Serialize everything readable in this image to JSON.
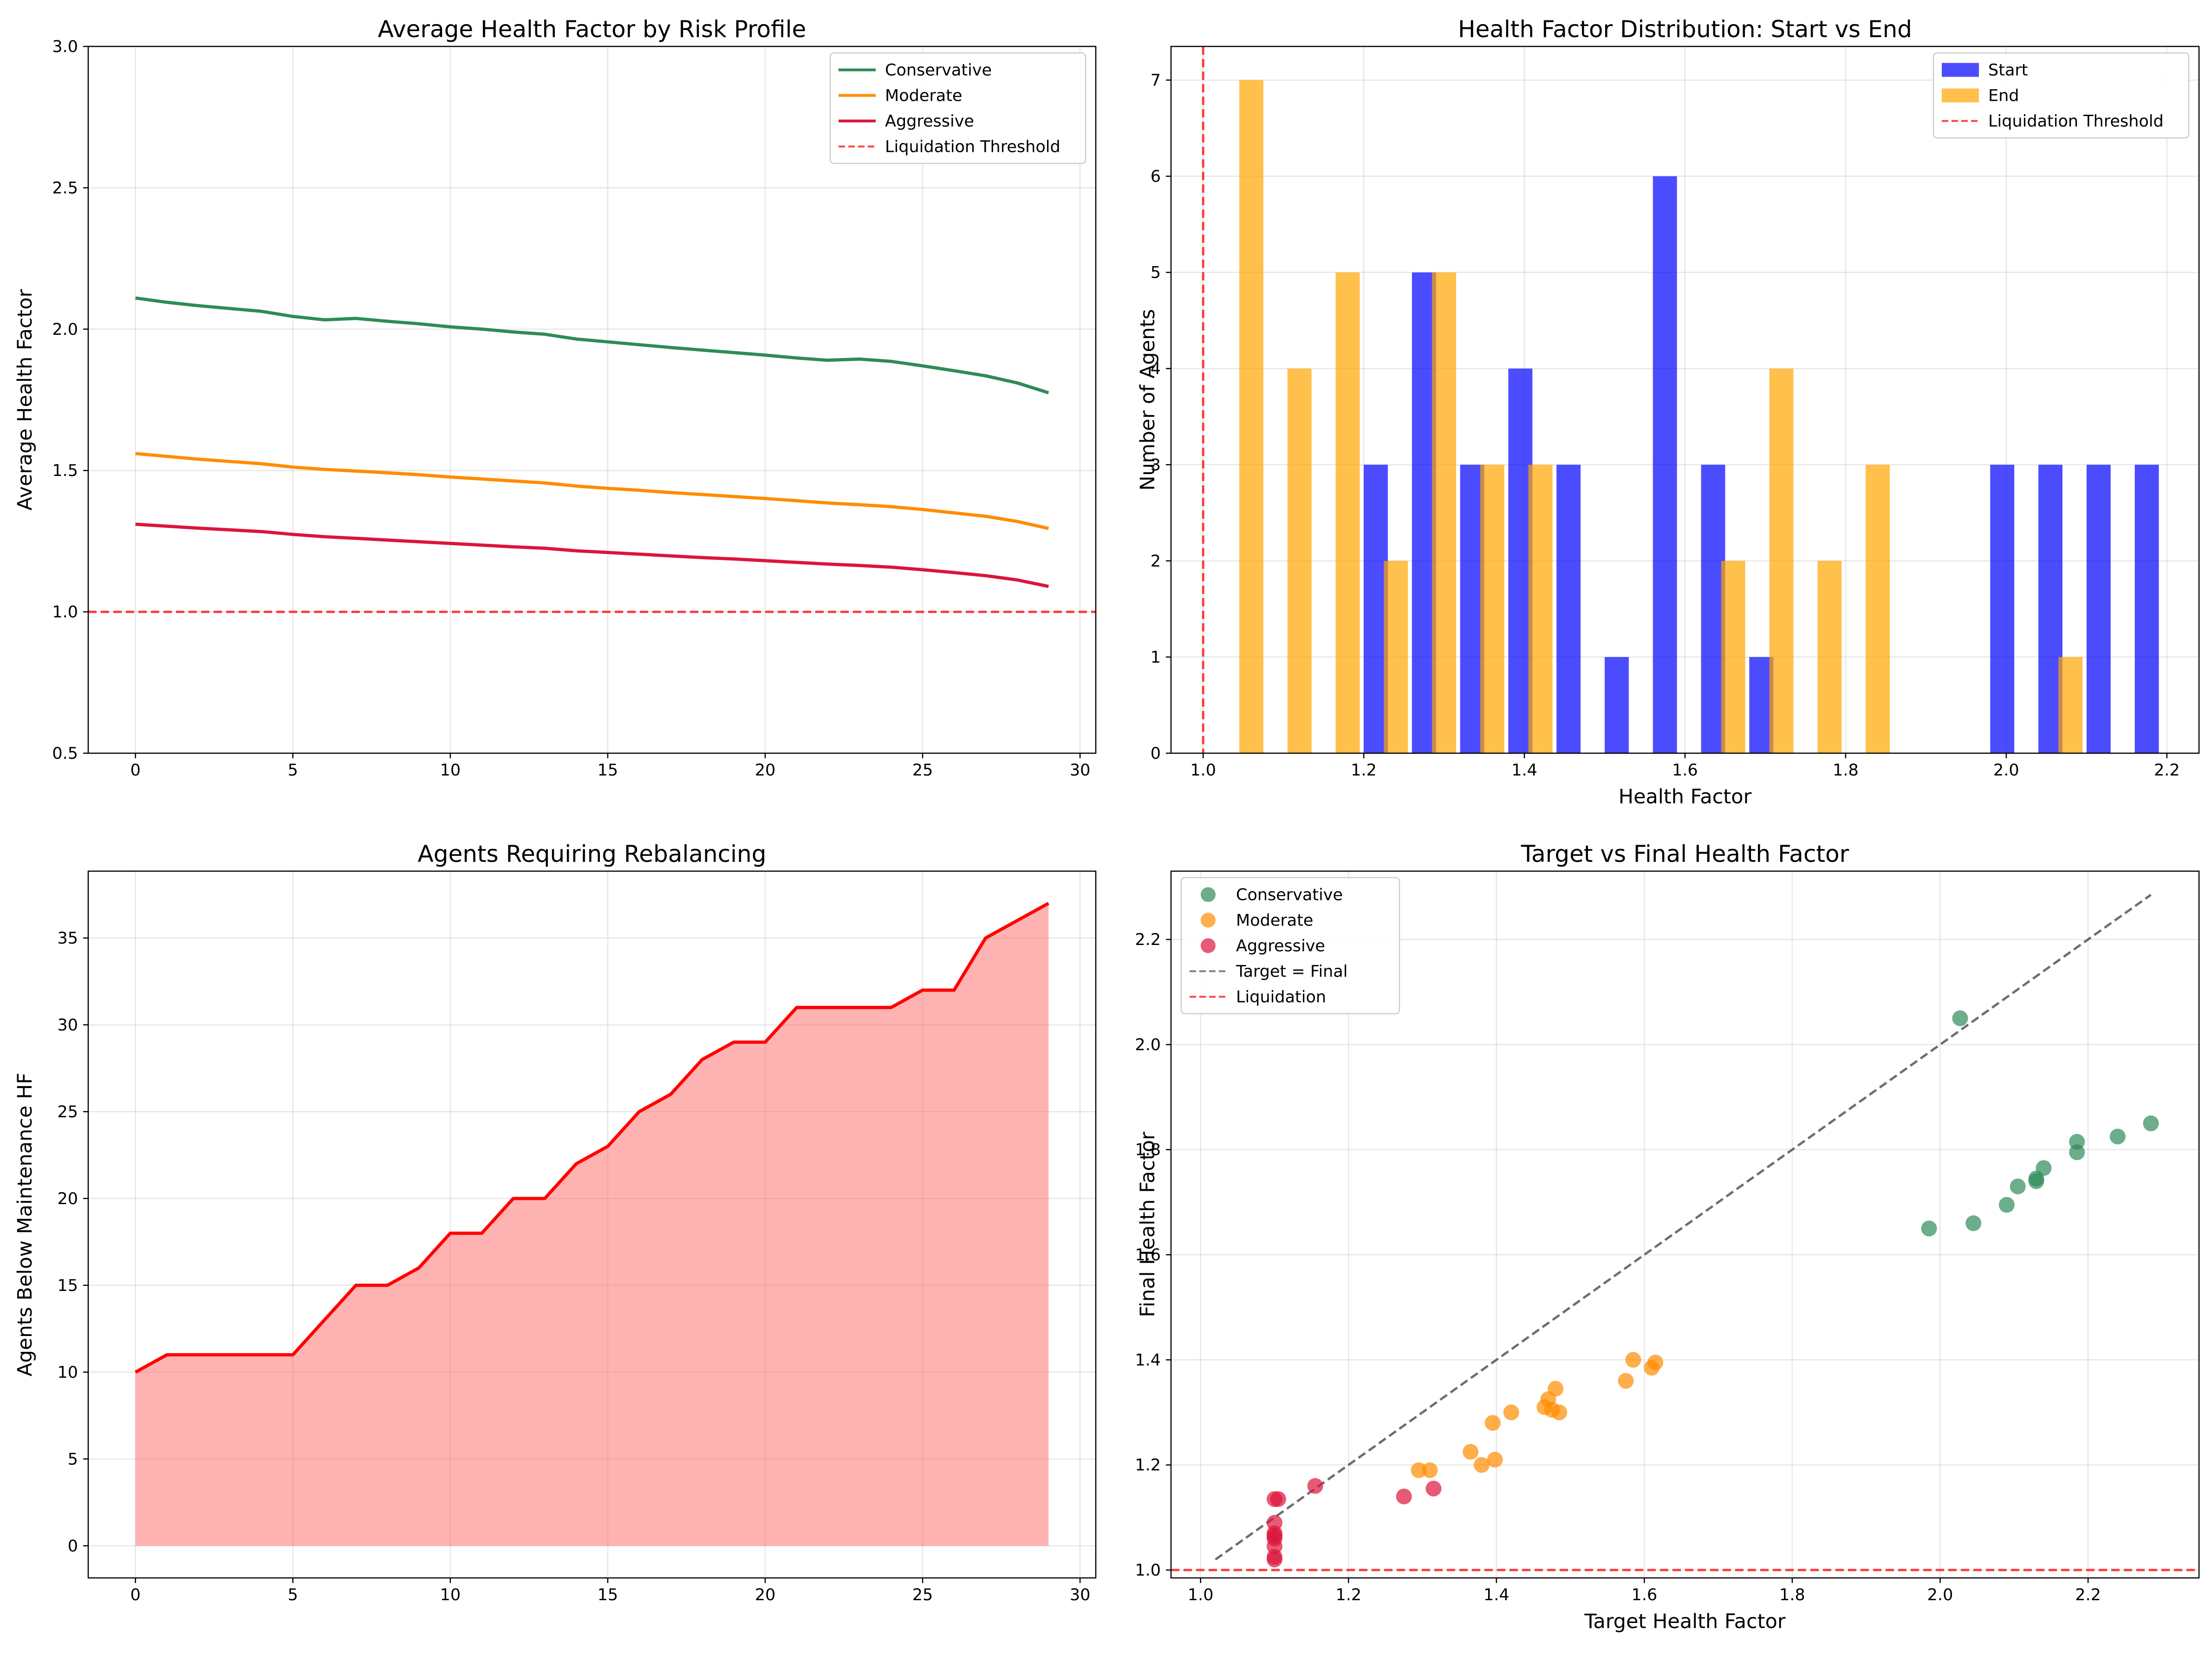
{
  "chart_data": [
    {
      "type": "line",
      "title": "Average Health Factor by Risk Profile",
      "xlabel": "",
      "ylabel": "Average Health Factor",
      "xlim": [
        -1.5,
        30.5
      ],
      "ylim": [
        0.5,
        3.0
      ],
      "xticks": [
        0,
        5,
        10,
        15,
        20,
        25,
        30
      ],
      "yticks": [
        0.5,
        1.0,
        1.5,
        2.0,
        2.5,
        3.0
      ],
      "x": [
        0,
        1,
        2,
        3,
        4,
        5,
        6,
        7,
        8,
        9,
        10,
        11,
        12,
        13,
        14,
        15,
        16,
        17,
        18,
        19,
        20,
        21,
        22,
        23,
        24,
        25,
        26,
        27,
        28,
        29
      ],
      "series": [
        {
          "name": "Conservative",
          "color": "#2e8b57",
          "values": [
            2.11,
            2.095,
            2.083,
            2.073,
            2.063,
            2.045,
            2.033,
            2.038,
            2.028,
            2.019,
            2.008,
            2.0,
            1.99,
            1.982,
            1.965,
            1.955,
            1.945,
            1.935,
            1.926,
            1.917,
            1.908,
            1.898,
            1.89,
            1.894,
            1.886,
            1.87,
            1.853,
            1.835,
            1.81,
            1.775
          ]
        },
        {
          "name": "Moderate",
          "color": "#ff8c00",
          "values": [
            1.56,
            1.55,
            1.54,
            1.532,
            1.524,
            1.512,
            1.504,
            1.498,
            1.492,
            1.485,
            1.477,
            1.47,
            1.463,
            1.456,
            1.445,
            1.437,
            1.43,
            1.422,
            1.415,
            1.408,
            1.401,
            1.393,
            1.385,
            1.379,
            1.372,
            1.362,
            1.35,
            1.338,
            1.32,
            1.295
          ]
        },
        {
          "name": "Aggressive",
          "color": "#dc143c",
          "values": [
            1.31,
            1.303,
            1.296,
            1.29,
            1.284,
            1.274,
            1.266,
            1.26,
            1.254,
            1.248,
            1.242,
            1.236,
            1.23,
            1.225,
            1.216,
            1.21,
            1.204,
            1.198,
            1.192,
            1.187,
            1.181,
            1.175,
            1.169,
            1.164,
            1.158,
            1.149,
            1.139,
            1.128,
            1.113,
            1.09
          ]
        }
      ],
      "reference_lines": [
        {
          "name": "Liquidation Threshold",
          "axis": "y",
          "value": 1.0,
          "color": "#ff0000",
          "style": "dashed"
        }
      ],
      "legend": "upper right",
      "grid": true
    },
    {
      "type": "bar",
      "title": "Health Factor Distribution: Start vs End",
      "xlabel": "Health Factor",
      "ylabel": "Number of Agents",
      "xlim": [
        0.96,
        2.24
      ],
      "ylim": [
        0,
        7.35
      ],
      "xticks": [
        1.0,
        1.2,
        1.4,
        1.6,
        1.8,
        2.0,
        2.2
      ],
      "yticks": [
        0,
        1,
        2,
        3,
        4,
        5,
        6,
        7
      ],
      "bin_width": 0.03,
      "series": [
        {
          "name": "Start",
          "color": "#0000ff",
          "bins": [
            {
              "x": 1.215,
              "count": 3
            },
            {
              "x": 1.275,
              "count": 5
            },
            {
              "x": 1.335,
              "count": 3
            },
            {
              "x": 1.395,
              "count": 4
            },
            {
              "x": 1.455,
              "count": 3
            },
            {
              "x": 1.515,
              "count": 1
            },
            {
              "x": 1.575,
              "count": 6
            },
            {
              "x": 1.635,
              "count": 3
            },
            {
              "x": 1.695,
              "count": 1
            },
            {
              "x": 1.995,
              "count": 3
            },
            {
              "x": 2.055,
              "count": 3
            },
            {
              "x": 2.115,
              "count": 3
            },
            {
              "x": 2.175,
              "count": 3
            }
          ]
        },
        {
          "name": "End",
          "color": "#ffa500",
          "bins": [
            {
              "x": 1.06,
              "count": 7
            },
            {
              "x": 1.12,
              "count": 4
            },
            {
              "x": 1.18,
              "count": 5
            },
            {
              "x": 1.24,
              "count": 2
            },
            {
              "x": 1.3,
              "count": 5
            },
            {
              "x": 1.36,
              "count": 3
            },
            {
              "x": 1.42,
              "count": 3
            },
            {
              "x": 1.66,
              "count": 2
            },
            {
              "x": 1.72,
              "count": 4
            },
            {
              "x": 1.78,
              "count": 2
            },
            {
              "x": 1.84,
              "count": 3
            },
            {
              "x": 2.08,
              "count": 1
            }
          ]
        }
      ],
      "reference_lines": [
        {
          "name": "Liquidation Threshold",
          "axis": "x",
          "value": 1.0,
          "color": "#ff0000",
          "style": "dashed"
        }
      ],
      "legend": "upper right",
      "grid": true
    },
    {
      "type": "area",
      "title": "Agents Requiring Rebalancing",
      "xlabel": "",
      "ylabel": "Agents Below Maintenance HF",
      "xlim": [
        -1.5,
        30.5
      ],
      "ylim": [
        -1.85,
        38.85
      ],
      "xticks": [
        0,
        5,
        10,
        15,
        20,
        25,
        30
      ],
      "yticks": [
        0,
        5,
        10,
        15,
        20,
        25,
        30,
        35
      ],
      "x": [
        0,
        1,
        2,
        3,
        4,
        5,
        6,
        7,
        8,
        9,
        10,
        11,
        12,
        13,
        14,
        15,
        16,
        17,
        18,
        19,
        20,
        21,
        22,
        23,
        24,
        25,
        26,
        27,
        28,
        29
      ],
      "values": [
        10,
        11,
        11,
        11,
        11,
        11,
        13,
        15,
        15,
        16,
        18,
        18,
        20,
        20,
        22,
        23,
        25,
        26,
        28,
        29,
        29,
        31,
        31,
        31,
        31,
        32,
        32,
        35,
        36,
        37
      ],
      "line_color": "#ff0000",
      "fill_color": "#ff6666",
      "grid": true
    },
    {
      "type": "scatter",
      "title": "Target vs Final Health Factor",
      "xlabel": "Target Health Factor",
      "ylabel": "Final Health Factor",
      "xlim": [
        0.96,
        2.35
      ],
      "ylim": [
        0.985,
        2.33
      ],
      "xticks": [
        1.0,
        1.2,
        1.4,
        1.6,
        1.8,
        2.0,
        2.2
      ],
      "yticks": [
        1.0,
        1.2,
        1.4,
        1.6,
        1.8,
        2.0,
        2.2
      ],
      "series": [
        {
          "name": "Conservative",
          "color": "#2e8b57",
          "points": [
            [
              1.985,
              1.65
            ],
            [
              2.027,
              2.05
            ],
            [
              2.045,
              1.66
            ],
            [
              2.09,
              1.695
            ],
            [
              2.105,
              1.73
            ],
            [
              2.13,
              1.745
            ],
            [
              2.13,
              1.74
            ],
            [
              2.14,
              1.765
            ],
            [
              2.185,
              1.795
            ],
            [
              2.185,
              1.815
            ],
            [
              2.24,
              1.825
            ],
            [
              2.285,
              1.85
            ]
          ]
        },
        {
          "name": "Moderate",
          "color": "#ff8c00",
          "points": [
            [
              1.295,
              1.19
            ],
            [
              1.31,
              1.19
            ],
            [
              1.365,
              1.225
            ],
            [
              1.38,
              1.2
            ],
            [
              1.395,
              1.28
            ],
            [
              1.398,
              1.21
            ],
            [
              1.42,
              1.3
            ],
            [
              1.465,
              1.31
            ],
            [
              1.47,
              1.325
            ],
            [
              1.475,
              1.305
            ],
            [
              1.48,
              1.345
            ],
            [
              1.485,
              1.3
            ],
            [
              1.575,
              1.36
            ],
            [
              1.585,
              1.4
            ],
            [
              1.61,
              1.385
            ],
            [
              1.615,
              1.395
            ]
          ]
        },
        {
          "name": "Aggressive",
          "color": "#dc143c",
          "points": [
            [
              1.1,
              1.135
            ],
            [
              1.105,
              1.135
            ],
            [
              1.1,
              1.09
            ],
            [
              1.1,
              1.07
            ],
            [
              1.1,
              1.065
            ],
            [
              1.1,
              1.06
            ],
            [
              1.1,
              1.045
            ],
            [
              1.1,
              1.025
            ],
            [
              1.1,
              1.02
            ],
            [
              1.155,
              1.16
            ],
            [
              1.275,
              1.14
            ],
            [
              1.315,
              1.155
            ]
          ]
        }
      ],
      "reference_lines": [
        {
          "name": "Target = Final",
          "kind": "diagonal",
          "from": [
            1.02,
            1.02
          ],
          "to": [
            2.285,
            2.285
          ],
          "color": "#555555",
          "style": "dashed"
        },
        {
          "name": "Liquidation",
          "axis": "y",
          "value": 1.0,
          "color": "#ff0000",
          "style": "dashed"
        }
      ],
      "legend": "upper left",
      "grid": true
    }
  ]
}
